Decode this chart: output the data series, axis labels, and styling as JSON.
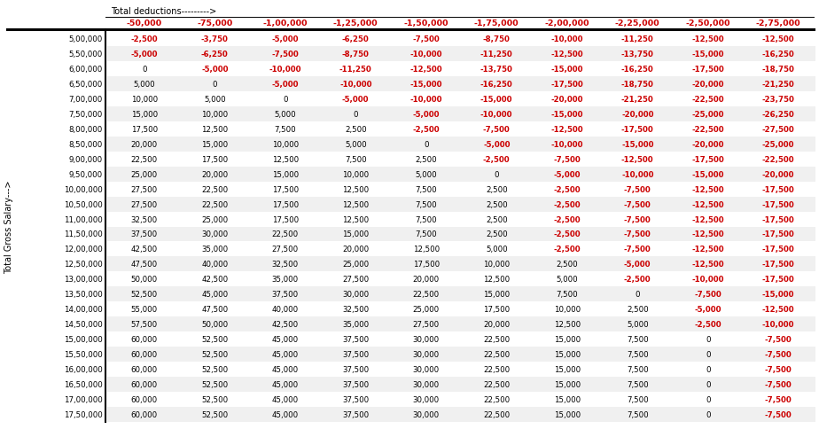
{
  "title_deductions": "Total deductions--------->",
  "title_salary": "Total Gross Salary--->",
  "col_headers": [
    "-50,000",
    "-75,000",
    "-1,00,000",
    "-1,25,000",
    "-1,50,000",
    "-1,75,000",
    "-2,00,000",
    "-2,25,000",
    "-2,50,000",
    "-2,75,000"
  ],
  "row_headers": [
    "5,00,000",
    "5,50,000",
    "6,00,000",
    "6,50,000",
    "7,00,000",
    "7,50,000",
    "8,00,000",
    "8,50,000",
    "9,00,000",
    "9,50,000",
    "10,00,000",
    "10,50,000",
    "11,00,000",
    "11,50,000",
    "12,00,000",
    "12,50,000",
    "13,00,000",
    "13,50,000",
    "14,00,000",
    "14,50,000",
    "15,00,000",
    "15,50,000",
    "16,00,000",
    "16,50,000",
    "17,00,000",
    "17,50,000"
  ],
  "table_data": [
    [
      "-2,500",
      "-3,750",
      "-5,000",
      "-6,250",
      "-7,500",
      "-8,750",
      "-10,000",
      "-11,250",
      "-12,500",
      "-12,500"
    ],
    [
      "-5,000",
      "-6,250",
      "-7,500",
      "-8,750",
      "-10,000",
      "-11,250",
      "-12,500",
      "-13,750",
      "-15,000",
      "-16,250"
    ],
    [
      "0",
      "-5,000",
      "-10,000",
      "-11,250",
      "-12,500",
      "-13,750",
      "-15,000",
      "-16,250",
      "-17,500",
      "-18,750"
    ],
    [
      "5,000",
      "0",
      "-5,000",
      "-10,000",
      "-15,000",
      "-16,250",
      "-17,500",
      "-18,750",
      "-20,000",
      "-21,250"
    ],
    [
      "10,000",
      "5,000",
      "0",
      "-5,000",
      "-10,000",
      "-15,000",
      "-20,000",
      "-21,250",
      "-22,500",
      "-23,750"
    ],
    [
      "15,000",
      "10,000",
      "5,000",
      "0",
      "-5,000",
      "-10,000",
      "-15,000",
      "-20,000",
      "-25,000",
      "-26,250"
    ],
    [
      "17,500",
      "12,500",
      "7,500",
      "2,500",
      "-2,500",
      "-7,500",
      "-12,500",
      "-17,500",
      "-22,500",
      "-27,500"
    ],
    [
      "20,000",
      "15,000",
      "10,000",
      "5,000",
      "0",
      "-5,000",
      "-10,000",
      "-15,000",
      "-20,000",
      "-25,000"
    ],
    [
      "22,500",
      "17,500",
      "12,500",
      "7,500",
      "2,500",
      "-2,500",
      "-7,500",
      "-12,500",
      "-17,500",
      "-22,500"
    ],
    [
      "25,000",
      "20,000",
      "15,000",
      "10,000",
      "5,000",
      "0",
      "-5,000",
      "-10,000",
      "-15,000",
      "-20,000"
    ],
    [
      "27,500",
      "22,500",
      "17,500",
      "12,500",
      "7,500",
      "2,500",
      "-2,500",
      "-7,500",
      "-12,500",
      "-17,500"
    ],
    [
      "27,500",
      "22,500",
      "17,500",
      "12,500",
      "7,500",
      "2,500",
      "-2,500",
      "-7,500",
      "-12,500",
      "-17,500"
    ],
    [
      "32,500",
      "25,000",
      "17,500",
      "12,500",
      "7,500",
      "2,500",
      "-2,500",
      "-7,500",
      "-12,500",
      "-17,500"
    ],
    [
      "37,500",
      "30,000",
      "22,500",
      "15,000",
      "7,500",
      "2,500",
      "-2,500",
      "-7,500",
      "-12,500",
      "-17,500"
    ],
    [
      "42,500",
      "35,000",
      "27,500",
      "20,000",
      "12,500",
      "5,000",
      "-2,500",
      "-7,500",
      "-12,500",
      "-17,500"
    ],
    [
      "47,500",
      "40,000",
      "32,500",
      "25,000",
      "17,500",
      "10,000",
      "2,500",
      "-5,000",
      "-12,500",
      "-17,500"
    ],
    [
      "50,000",
      "42,500",
      "35,000",
      "27,500",
      "20,000",
      "12,500",
      "5,000",
      "-2,500",
      "-10,000",
      "-17,500"
    ],
    [
      "52,500",
      "45,000",
      "37,500",
      "30,000",
      "22,500",
      "15,000",
      "7,500",
      "0",
      "-7,500",
      "-15,000"
    ],
    [
      "55,000",
      "47,500",
      "40,000",
      "32,500",
      "25,000",
      "17,500",
      "10,000",
      "2,500",
      "-5,000",
      "-12,500"
    ],
    [
      "57,500",
      "50,000",
      "42,500",
      "35,000",
      "27,500",
      "20,000",
      "12,500",
      "5,000",
      "-2,500",
      "-10,000"
    ],
    [
      "60,000",
      "52,500",
      "45,000",
      "37,500",
      "30,000",
      "22,500",
      "15,000",
      "7,500",
      "0",
      "-7,500"
    ],
    [
      "60,000",
      "52,500",
      "45,000",
      "37,500",
      "30,000",
      "22,500",
      "15,000",
      "7,500",
      "0",
      "-7,500"
    ],
    [
      "60,000",
      "52,500",
      "45,000",
      "37,500",
      "30,000",
      "22,500",
      "15,000",
      "7,500",
      "0",
      "-7,500"
    ],
    [
      "60,000",
      "52,500",
      "45,000",
      "37,500",
      "30,000",
      "22,500",
      "15,000",
      "7,500",
      "0",
      "-7,500"
    ],
    [
      "60,000",
      "52,500",
      "45,000",
      "37,500",
      "30,000",
      "22,500",
      "15,000",
      "7,500",
      "0",
      "-7,500"
    ],
    [
      "60,000",
      "52,500",
      "45,000",
      "37,500",
      "30,000",
      "22,500",
      "15,000",
      "7,500",
      "0",
      "-7,500"
    ]
  ],
  "negative_color": "#cc0000",
  "positive_color": "#000000",
  "zero_color": "#000000",
  "header_color": "#cc0000",
  "bg_color": "#ffffff",
  "table_font_size": 6.2,
  "header_font_size": 6.8,
  "title_font_size": 7.0
}
